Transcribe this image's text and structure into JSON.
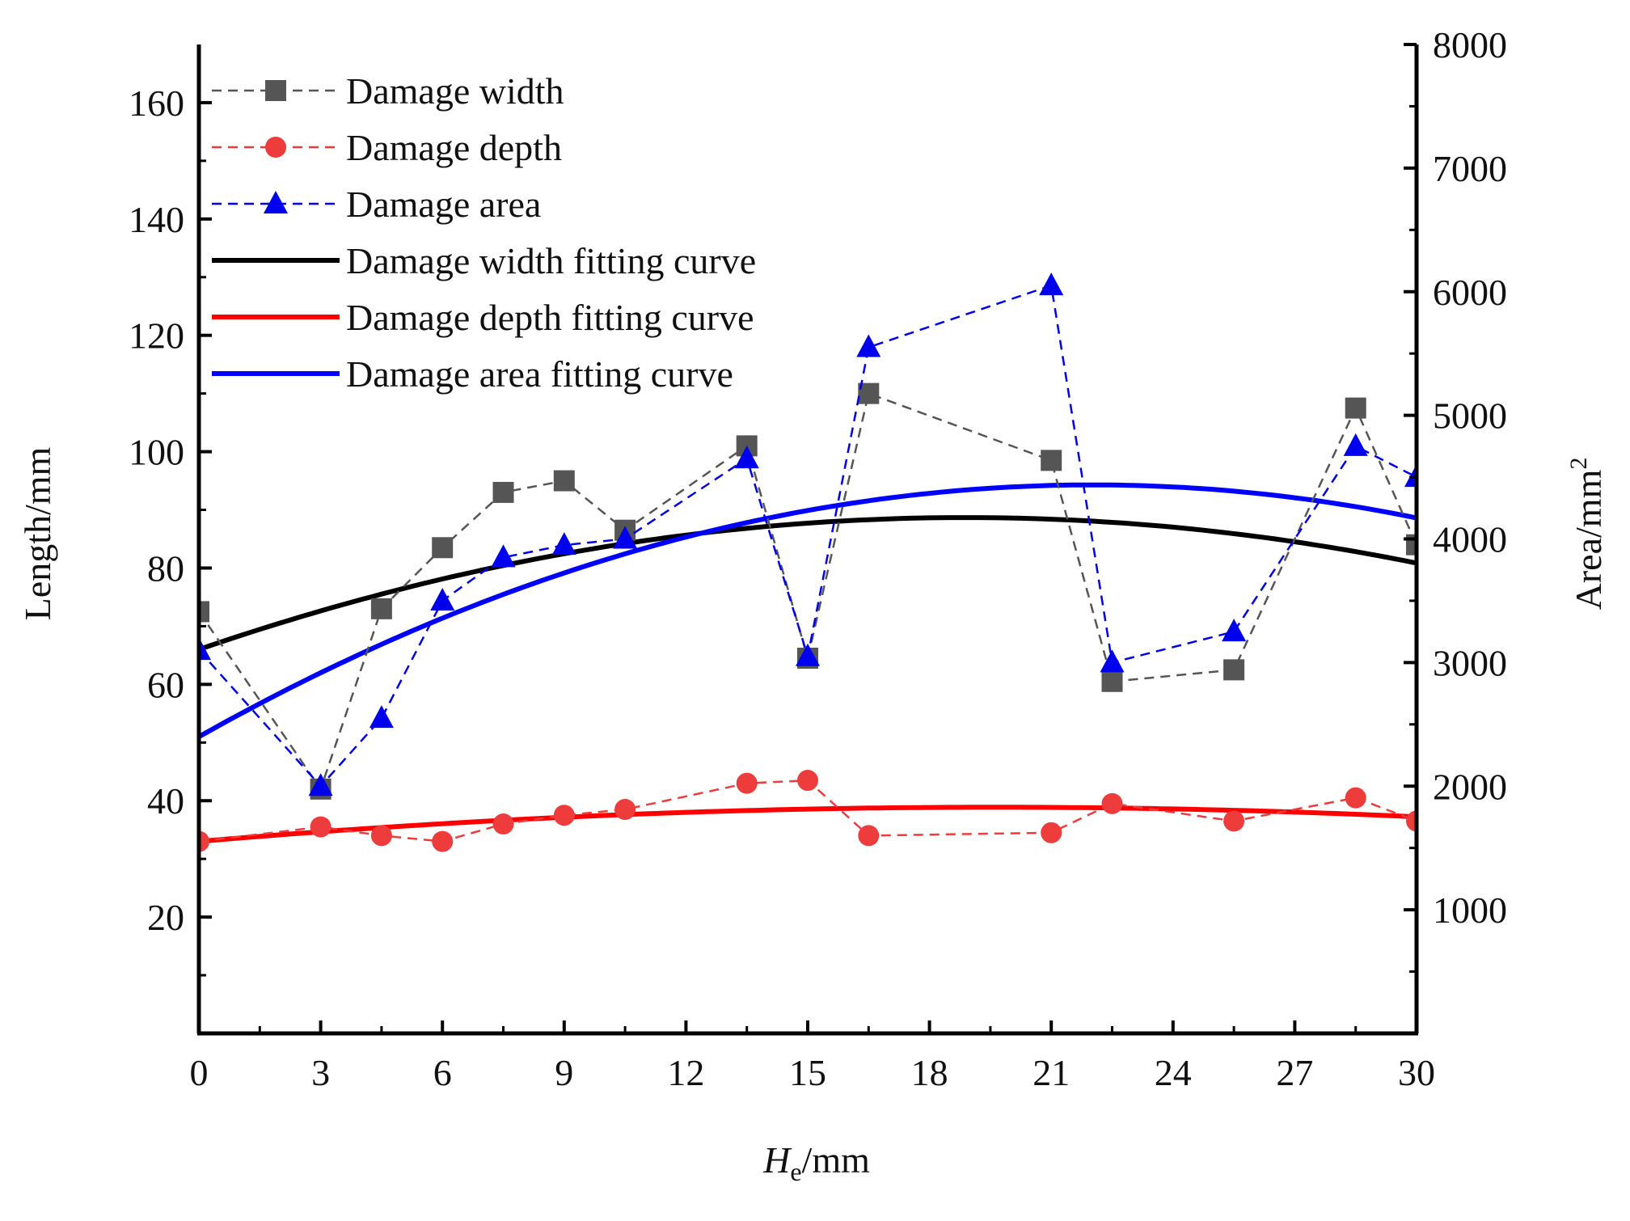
{
  "chart_data": {
    "type": "line",
    "xlabel_main": "H",
    "xlabel_sub": "e",
    "xlabel_unit": "/mm",
    "ylabel": "Length/mm",
    "y2label": "Area/mm",
    "y2label_sup": "2",
    "xlim": [
      0,
      30
    ],
    "ylim": [
      0,
      170
    ],
    "y2lim": [
      0,
      8000
    ],
    "x_ticks": [
      0,
      3,
      6,
      9,
      12,
      15,
      18,
      21,
      24,
      27,
      30
    ],
    "x_tick_labels": [
      "0",
      "3",
      "6",
      "9",
      "12",
      "15",
      "18",
      "21",
      "24",
      "27",
      "30"
    ],
    "y_ticks": [
      20,
      40,
      60,
      80,
      100,
      120,
      140,
      160
    ],
    "y_tick_labels": [
      "20",
      "40",
      "60",
      "80",
      "100",
      "120",
      "140",
      "160"
    ],
    "y2_ticks": [
      1000,
      2000,
      3000,
      4000,
      5000,
      6000,
      7000,
      8000
    ],
    "y2_tick_labels": [
      "1000",
      "2000",
      "3000",
      "4000",
      "5000",
      "6000",
      "7000",
      "8000"
    ],
    "legend_position": "top-left",
    "series": [
      {
        "name": "Damage width",
        "axis": "left",
        "color": "#555555",
        "marker": "square",
        "style": "dashed",
        "x": [
          0,
          3,
          4.5,
          6,
          7.5,
          9,
          10.5,
          13.5,
          15,
          16.5,
          21,
          22.5,
          25.5,
          28.5,
          30
        ],
        "values": [
          72.5,
          42,
          73,
          83.5,
          93,
          95,
          86.5,
          101,
          64.5,
          110,
          98.5,
          60.5,
          62.5,
          107.5,
          84
        ]
      },
      {
        "name": "Damage depth",
        "axis": "left",
        "color": "#ee3b3b",
        "marker": "circle",
        "style": "dashed",
        "x": [
          0,
          3,
          4.5,
          6,
          7.5,
          9,
          10.5,
          13.5,
          15,
          16.5,
          21,
          22.5,
          25.5,
          28.5,
          30
        ],
        "values": [
          33,
          35.5,
          34,
          33,
          36,
          37.5,
          38.5,
          43,
          43.5,
          34,
          34.5,
          39.5,
          36.5,
          40.5,
          36.5
        ]
      },
      {
        "name": "Damage area",
        "axis": "right",
        "color": "#0000ee",
        "marker": "triangle",
        "style": "dashed",
        "x": [
          0,
          3,
          4.5,
          6,
          7.5,
          9,
          10.5,
          13.5,
          15,
          16.5,
          21,
          22.5,
          25.5,
          28.5,
          30
        ],
        "values": [
          3100,
          2000,
          2550,
          3500,
          3850,
          3950,
          4000,
          4650,
          3050,
          5550,
          6050,
          3000,
          3250,
          4750,
          4500
        ]
      },
      {
        "name": "Damage width fitting curve",
        "axis": "left",
        "color": "#000000",
        "style": "solid",
        "fit": [
          66,
          2.4,
          -0.0635
        ]
      },
      {
        "name": "Damage depth fitting curve",
        "axis": "left",
        "color": "#ff0000",
        "style": "solid",
        "fit": [
          33,
          0.6,
          -0.0153
        ]
      },
      {
        "name": "Damage area fitting curve",
        "axis": "right",
        "color": "#0000ff",
        "style": "solid",
        "fit": [
          2400,
          185,
          -4.2
        ]
      }
    ]
  }
}
